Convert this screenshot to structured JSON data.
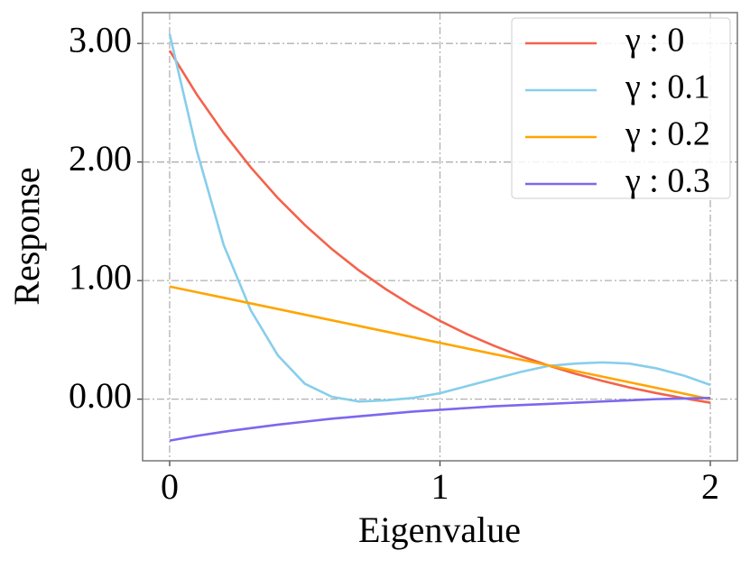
{
  "chart_data": {
    "type": "line",
    "xlabel": "Eigenvalue",
    "ylabel": "Response",
    "x": [
      0,
      0.1,
      0.2,
      0.3,
      0.4,
      0.5,
      0.6,
      0.7,
      0.8,
      0.9,
      1.0,
      1.1,
      1.2,
      1.3,
      1.4,
      1.5,
      1.6,
      1.7,
      1.8,
      1.9,
      2.0
    ],
    "series": [
      {
        "name": "γ : 0",
        "color": "#f4624a",
        "values": [
          2.94,
          2.571,
          2.245,
          1.955,
          1.697,
          1.469,
          1.266,
          1.086,
          0.927,
          0.785,
          0.66,
          0.548,
          0.45,
          0.362,
          0.284,
          0.215,
          0.154,
          0.099,
          0.051,
          0.008,
          -0.03
        ]
      },
      {
        "name": "γ : 0.1",
        "color": "#87ceeb",
        "values": [
          3.08,
          2.1,
          1.3,
          0.75,
          0.37,
          0.13,
          0.02,
          -0.02,
          -0.01,
          0.01,
          0.05,
          0.11,
          0.17,
          0.23,
          0.28,
          0.3,
          0.31,
          0.3,
          0.26,
          0.2,
          0.12
        ]
      },
      {
        "name": "γ : 0.2",
        "color": "#ffa500",
        "values": [
          0.95,
          0.9025,
          0.855,
          0.8075,
          0.76,
          0.7125,
          0.665,
          0.6175,
          0.57,
          0.5225,
          0.475,
          0.4275,
          0.38,
          0.3325,
          0.285,
          0.2375,
          0.19,
          0.1425,
          0.095,
          0.0475,
          0.0
        ]
      },
      {
        "name": "γ : 0.3",
        "color": "#7b68ee",
        "values": [
          -0.35,
          -0.31,
          -0.275,
          -0.245,
          -0.215,
          -0.19,
          -0.165,
          -0.145,
          -0.125,
          -0.105,
          -0.09,
          -0.075,
          -0.06,
          -0.05,
          -0.04,
          -0.03,
          -0.02,
          -0.01,
          0,
          0.005,
          0.01
        ]
      }
    ],
    "xlim": [
      -0.1,
      2.1
    ],
    "xticks": [
      0,
      1,
      2
    ],
    "ylim": [
      -0.52,
      3.26
    ],
    "yticks": [
      {
        "value": 0,
        "label": "0.00"
      },
      {
        "value": 1,
        "label": "1.00"
      },
      {
        "value": 2,
        "label": "2.00"
      },
      {
        "value": 3,
        "label": "3.00"
      }
    ],
    "grid": true,
    "legend": "upper right"
  }
}
